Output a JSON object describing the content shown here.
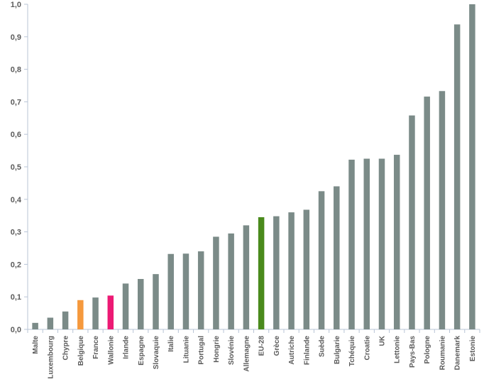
{
  "chart_data": {
    "type": "bar",
    "title": "",
    "xlabel": "",
    "ylabel": "",
    "ylim": [
      0,
      1.0
    ],
    "yticks": [
      "0,0",
      "0,1",
      "0,2",
      "0,3",
      "0,4",
      "0,5",
      "0,6",
      "0,7",
      "0,8",
      "0,9",
      "1,0"
    ],
    "grid": false,
    "legend": "none",
    "categories": [
      "Malte",
      "Luxembourg",
      "Chypre",
      "Belgique",
      "France",
      "Wallonie",
      "Irlande",
      "Espagne",
      "Slovaquie",
      "Italie",
      "Lituanie",
      "Portugal",
      "Hongrie",
      "Slovénie",
      "Allemagne",
      "EU-28",
      "Grèce",
      "Autriche",
      "Finlande",
      "Suède",
      "Bulgarie",
      "Tchéquie",
      "Croatie",
      "UK",
      "Lettonie",
      "Pays-Bas",
      "Pologne",
      "Roumanie",
      "Danemark",
      "Estonie"
    ],
    "values": [
      0.02,
      0.036,
      0.055,
      0.09,
      0.098,
      0.104,
      0.141,
      0.155,
      0.17,
      0.232,
      0.233,
      0.24,
      0.285,
      0.295,
      0.32,
      0.345,
      0.348,
      0.36,
      0.368,
      0.425,
      0.44,
      0.522,
      0.525,
      0.525,
      0.537,
      0.658,
      0.716,
      0.733,
      0.938,
      1.0
    ],
    "colors": {
      "default": "#7b8b88",
      "Belgique": "#f5993d",
      "Wallonie": "#ec1a74",
      "EU-28": "#4a8a1c",
      "axis": "#b8c4d6"
    }
  }
}
